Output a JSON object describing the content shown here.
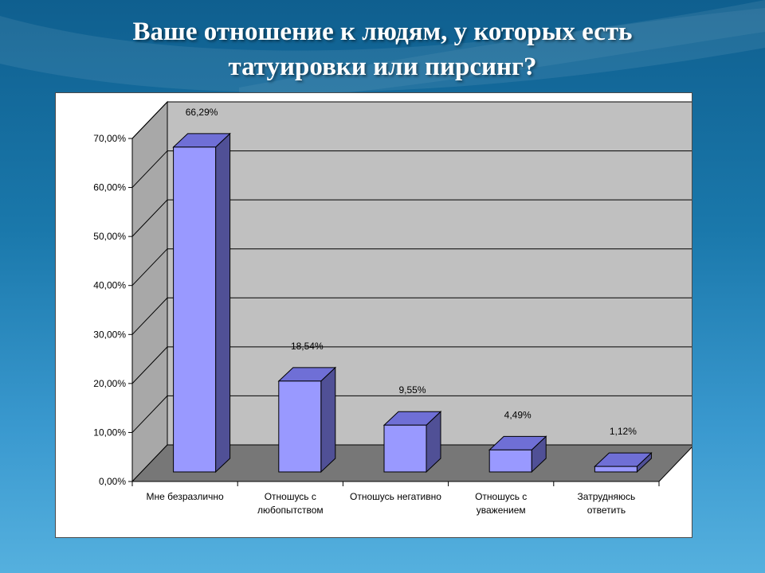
{
  "slide": {
    "title_line1": "Ваше отношение к людям, у которых есть",
    "title_line2": "татуировки или пирсинг?"
  },
  "colors": {
    "bar_front": "#9999ff",
    "bar_top": "#6f6fd6",
    "bar_side": "#505096",
    "wall": "#c0c0c0",
    "floor": "#777777",
    "side_wall": "#a8a8a8"
  },
  "chart_data": {
    "type": "bar",
    "title": "",
    "xlabel": "",
    "ylabel": "",
    "ylim": [
      0,
      70
    ],
    "yticks": [
      "0,00%",
      "10,00%",
      "20,00%",
      "30,00%",
      "40,00%",
      "50,00%",
      "60,00%",
      "70,00%"
    ],
    "grid": true,
    "three_d": true,
    "categories": [
      [
        "Мне безразлично"
      ],
      [
        "Отношусь с",
        "любопытством"
      ],
      [
        "Отношусь негативно"
      ],
      [
        "Отношусь с",
        "уважением"
      ],
      [
        "Затрудняюсь",
        "ответить"
      ]
    ],
    "values": [
      66.29,
      18.54,
      9.55,
      4.49,
      1.12
    ],
    "data_labels": [
      "66,29%",
      "18,54%",
      "9,55%",
      "4,49%",
      "1,12%"
    ]
  }
}
